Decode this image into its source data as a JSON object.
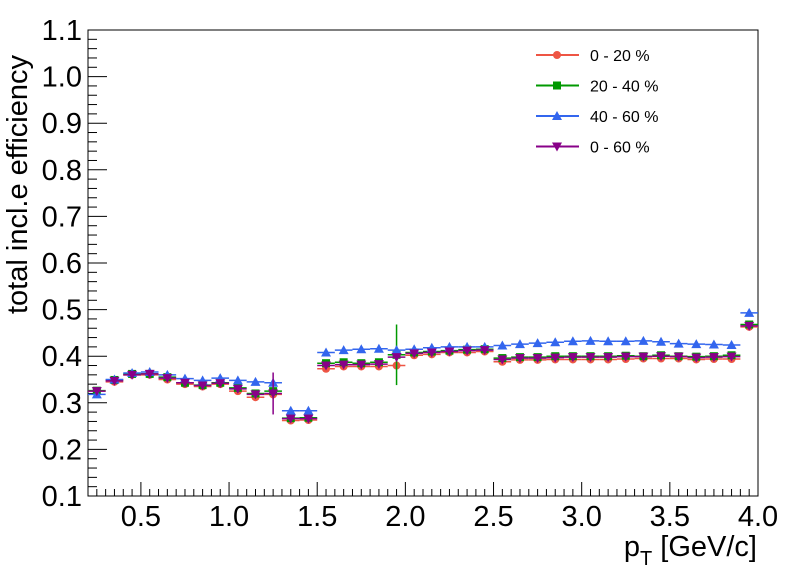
{
  "chart_data": {
    "type": "scatter",
    "xlabel_main": "p",
    "xlabel_sub": "T",
    "xlabel_rest": " [GeV/c]",
    "ylabel": "total incl.e efficiency",
    "xlim": [
      0.2,
      4.0
    ],
    "ylim": [
      0.1,
      1.1
    ],
    "x_ticks": [
      "0.5",
      "1.0",
      "1.5",
      "2.0",
      "2.5",
      "3.0",
      "3.5",
      "4.0"
    ],
    "x_tick_values": [
      0.5,
      1.0,
      1.5,
      2.0,
      2.5,
      3.0,
      3.5,
      4.0
    ],
    "y_ticks": [
      "0.1",
      "0.2",
      "0.3",
      "0.4",
      "0.5",
      "0.6",
      "0.7",
      "0.8",
      "0.9",
      "1.0",
      "1.1"
    ],
    "y_tick_values": [
      0.1,
      0.2,
      0.3,
      0.4,
      0.5,
      0.6,
      0.7,
      0.8,
      0.9,
      1.0,
      1.1
    ],
    "legend_position": "top-right",
    "x": [
      0.25,
      0.35,
      0.45,
      0.55,
      0.65,
      0.75,
      0.85,
      0.95,
      1.05,
      1.15,
      1.25,
      1.35,
      1.45,
      1.55,
      1.65,
      1.75,
      1.85,
      1.95,
      2.05,
      2.15,
      2.25,
      2.35,
      2.45,
      2.55,
      2.65,
      2.75,
      2.85,
      2.95,
      3.05,
      3.15,
      3.25,
      3.35,
      3.45,
      3.55,
      3.65,
      3.75,
      3.85,
      3.95
    ],
    "series": [
      {
        "name": "0 - 20 %",
        "color": "#ee5544",
        "marker": "circle",
        "values": [
          0.325,
          0.345,
          0.36,
          0.36,
          0.35,
          0.34,
          0.335,
          0.34,
          0.325,
          0.312,
          0.318,
          0.262,
          0.263,
          0.373,
          0.378,
          0.378,
          0.378,
          0.38,
          0.402,
          0.404,
          0.408,
          0.408,
          0.41,
          0.388,
          0.392,
          0.392,
          0.393,
          0.393,
          0.393,
          0.393,
          0.394,
          0.395,
          0.395,
          0.395,
          0.393,
          0.394,
          0.394,
          0.463
        ],
        "errors": [
          0.003,
          0.003,
          0.003,
          0.003,
          0.003,
          0.003,
          0.003,
          0.003,
          0.003,
          0.004,
          0.01,
          0.004,
          0.004,
          0.004,
          0.004,
          0.004,
          0.004,
          0.008,
          0.004,
          0.004,
          0.004,
          0.004,
          0.004,
          0.004,
          0.004,
          0.004,
          0.004,
          0.004,
          0.004,
          0.004,
          0.004,
          0.004,
          0.004,
          0.004,
          0.004,
          0.004,
          0.004,
          0.005
        ]
      },
      {
        "name": "20 - 40 %",
        "color": "#009900",
        "marker": "square",
        "values": [
          0.326,
          0.349,
          0.362,
          0.362,
          0.355,
          0.343,
          0.338,
          0.343,
          0.332,
          0.32,
          0.325,
          0.267,
          0.268,
          0.385,
          0.387,
          0.385,
          0.387,
          0.403,
          0.408,
          0.41,
          0.412,
          0.414,
          0.415,
          0.396,
          0.398,
          0.398,
          0.4,
          0.4,
          0.4,
          0.4,
          0.401,
          0.4,
          0.402,
          0.4,
          0.399,
          0.4,
          0.402,
          0.468
        ],
        "errors": [
          0.003,
          0.003,
          0.003,
          0.003,
          0.003,
          0.003,
          0.003,
          0.003,
          0.003,
          0.004,
          0.006,
          0.004,
          0.004,
          0.004,
          0.004,
          0.004,
          0.004,
          0.065,
          0.004,
          0.004,
          0.004,
          0.004,
          0.004,
          0.004,
          0.004,
          0.004,
          0.004,
          0.004,
          0.004,
          0.004,
          0.004,
          0.004,
          0.004,
          0.004,
          0.004,
          0.004,
          0.004,
          0.005
        ]
      },
      {
        "name": "40 - 60 %",
        "color": "#3366ee",
        "marker": "triangle-up",
        "values": [
          0.318,
          0.35,
          0.364,
          0.366,
          0.36,
          0.352,
          0.348,
          0.353,
          0.348,
          0.345,
          0.343,
          0.283,
          0.283,
          0.408,
          0.413,
          0.415,
          0.416,
          0.413,
          0.415,
          0.418,
          0.42,
          0.42,
          0.42,
          0.423,
          0.426,
          0.428,
          0.43,
          0.432,
          0.433,
          0.432,
          0.432,
          0.433,
          0.431,
          0.427,
          0.426,
          0.425,
          0.424,
          0.493
        ],
        "errors": [
          0.003,
          0.003,
          0.003,
          0.003,
          0.003,
          0.003,
          0.003,
          0.003,
          0.003,
          0.004,
          0.006,
          0.004,
          0.004,
          0.004,
          0.004,
          0.004,
          0.004,
          0.008,
          0.004,
          0.004,
          0.004,
          0.004,
          0.004,
          0.004,
          0.004,
          0.004,
          0.004,
          0.004,
          0.004,
          0.004,
          0.004,
          0.004,
          0.004,
          0.004,
          0.004,
          0.004,
          0.004,
          0.005
        ]
      },
      {
        "name": "0 - 60 %",
        "color": "#880088",
        "marker": "triangle-down",
        "values": [
          0.325,
          0.347,
          0.36,
          0.362,
          0.353,
          0.343,
          0.337,
          0.342,
          0.33,
          0.318,
          0.32,
          0.266,
          0.266,
          0.38,
          0.382,
          0.382,
          0.383,
          0.398,
          0.406,
          0.408,
          0.41,
          0.412,
          0.413,
          0.393,
          0.396,
          0.396,
          0.397,
          0.398,
          0.398,
          0.398,
          0.399,
          0.399,
          0.4,
          0.399,
          0.397,
          0.398,
          0.399,
          0.465
        ],
        "errors": [
          0.003,
          0.003,
          0.003,
          0.003,
          0.003,
          0.003,
          0.003,
          0.003,
          0.003,
          0.004,
          0.045,
          0.004,
          0.004,
          0.004,
          0.004,
          0.004,
          0.004,
          0.008,
          0.004,
          0.004,
          0.004,
          0.004,
          0.004,
          0.004,
          0.004,
          0.004,
          0.004,
          0.004,
          0.004,
          0.004,
          0.004,
          0.004,
          0.004,
          0.004,
          0.004,
          0.004,
          0.004,
          0.005
        ]
      }
    ]
  }
}
